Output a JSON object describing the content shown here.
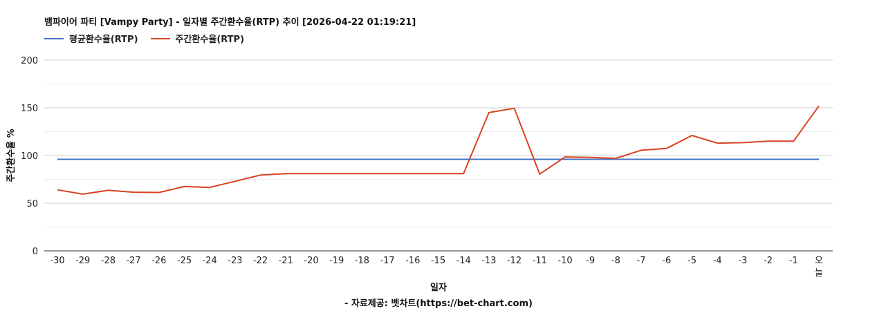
{
  "chart_data": {
    "type": "line",
    "title": "뱀파이어 파티 [Vampy Party] - 일자별 주간환수율(RTP) 추이 [2026-04-22 01:19:21]",
    "xlabel": "일자",
    "ylabel": "주간환수율 %",
    "source": "- 자료제공: 벳차트(https://bet-chart.com)",
    "ylim": [
      0,
      200
    ],
    "yticks": [
      0,
      50,
      100,
      150,
      200
    ],
    "grid": true,
    "legend_position": "top-left",
    "categories": [
      "-30",
      "-29",
      "-28",
      "-27",
      "-26",
      "-25",
      "-24",
      "-23",
      "-22",
      "-21",
      "-20",
      "-19",
      "-18",
      "-17",
      "-16",
      "-15",
      "-14",
      "-13",
      "-12",
      "-11",
      "-10",
      "-9",
      "-8",
      "-7",
      "-6",
      "-5",
      "-4",
      "-3",
      "-2",
      "-1",
      "오늘"
    ],
    "series": [
      {
        "name": "평균환수율(RTP)",
        "color": "#4472c4",
        "values": [
          96,
          96,
          96,
          96,
          96,
          96,
          96,
          96,
          96,
          96,
          96,
          96,
          96,
          96,
          96,
          96,
          96,
          96,
          96,
          96,
          96,
          96,
          96,
          96,
          96,
          96,
          96,
          96,
          96,
          96,
          96
        ]
      },
      {
        "name": "주간환수율(RTP)",
        "color": "#d9411e",
        "values": [
          64,
          59.5,
          63.5,
          61.5,
          61.2,
          67.5,
          66.5,
          73,
          79.5,
          81,
          81,
          81,
          81,
          81,
          81,
          81,
          81,
          145,
          149.5,
          80.5,
          98.5,
          98,
          97,
          105.5,
          107.5,
          121,
          113,
          113.5,
          115,
          115,
          152
        ]
      }
    ]
  }
}
